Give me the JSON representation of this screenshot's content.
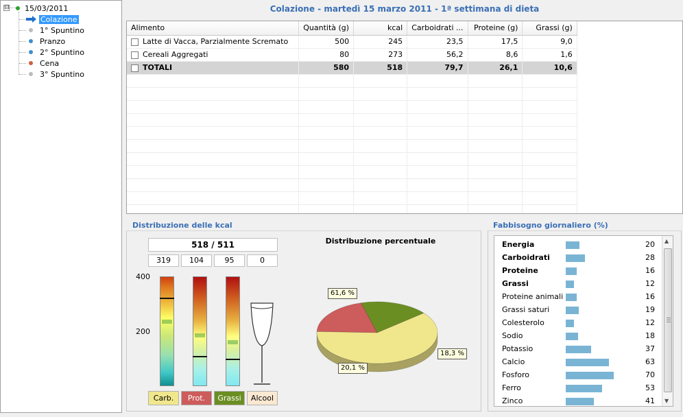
{
  "tree": {
    "date": "15/03/2011",
    "expander": "⊟",
    "items": [
      {
        "label": "Colazione",
        "color": "#3399ff"
      },
      {
        "label": "1° Spuntino",
        "color": "#bbbbbb"
      },
      {
        "label": "Pranzo",
        "color": "#3d8fd0"
      },
      {
        "label": "2° Spuntino",
        "color": "#3d8fd0"
      },
      {
        "label": "Cena",
        "color": "#d06040"
      },
      {
        "label": "3° Spuntino",
        "color": "#bbbbbb"
      }
    ]
  },
  "title": "Colazione - martedì 15 marzo 2011 - 1ª settimana di dieta",
  "grid": {
    "columns": [
      "Alimento",
      "Quantità (g)",
      "kcal",
      "Carboidrati ...",
      "Proteine (g)",
      "Grassi (g)"
    ],
    "rows": [
      [
        "Latte di Vacca, Parzialmente Scremato",
        "500",
        "245",
        "23,5",
        "17,5",
        "9,0"
      ],
      [
        "Cereali Aggregati",
        "80",
        "273",
        "56,2",
        "8,6",
        "1,6"
      ]
    ],
    "total": [
      "TOTALI",
      "580",
      "518",
      "79,7",
      "26,1",
      "10,6"
    ]
  },
  "kcal_panel": {
    "title": "Distribuzione delle kcal",
    "main_value": "518 / 511",
    "boxes": [
      "319",
      "104",
      "95",
      "0"
    ],
    "axis": {
      "top": "400",
      "mid": "200"
    },
    "legend": [
      {
        "label": "Carb.",
        "color": "#f0e68c"
      },
      {
        "label": "Prot.",
        "color": "#cd5c5c"
      },
      {
        "label": "Grassi",
        "color": "#6b8e23"
      },
      {
        "label": "Alcool",
        "color": "#fbe8d2"
      }
    ]
  },
  "pie": {
    "title": "Distribuzione percentuale",
    "labels": [
      "61,6 %",
      "20,1 %",
      "18,3 %"
    ]
  },
  "chart_data": {
    "type": "pie",
    "title": "Distribuzione percentuale",
    "categories": [
      "Carb.",
      "Prot.",
      "Grassi"
    ],
    "values": [
      61.6,
      20.1,
      18.3
    ],
    "colors": [
      "#f0e68c",
      "#cd5c5c",
      "#6b8e23"
    ]
  },
  "fabbisogno": {
    "title": "Fabbisogno giornaliero (%)",
    "items": [
      {
        "name": "Energia",
        "value": "20",
        "bold": true
      },
      {
        "name": "Carboidrati",
        "value": "28",
        "bold": true
      },
      {
        "name": "Proteine",
        "value": "16",
        "bold": true
      },
      {
        "name": "Grassi",
        "value": "12",
        "bold": true
      },
      {
        "name": "Proteine animali",
        "value": "16",
        "bold": false
      },
      {
        "name": "Grassi saturi",
        "value": "19",
        "bold": false
      },
      {
        "name": "Colesterolo",
        "value": "12",
        "bold": false
      },
      {
        "name": "Sodio",
        "value": "18",
        "bold": false
      },
      {
        "name": "Potassio",
        "value": "37",
        "bold": false
      },
      {
        "name": "Calcio",
        "value": "63",
        "bold": false
      },
      {
        "name": "Fosforo",
        "value": "70",
        "bold": false
      },
      {
        "name": "Ferro",
        "value": "53",
        "bold": false
      },
      {
        "name": "Zinco",
        "value": "41",
        "bold": false
      }
    ]
  }
}
